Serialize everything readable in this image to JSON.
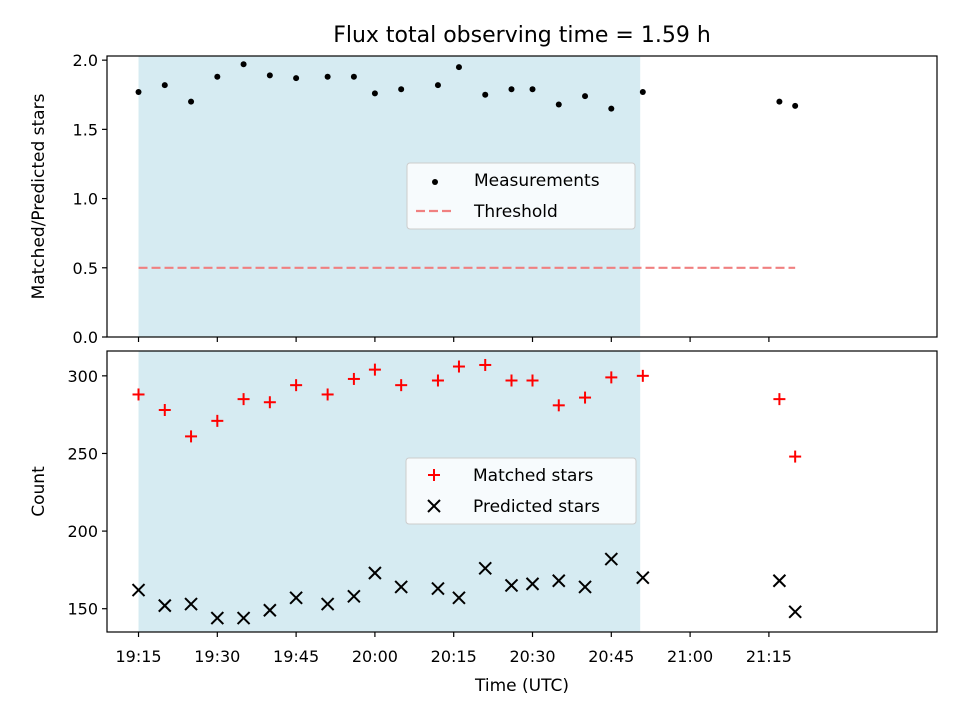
{
  "chart_data": {
    "title": "Flux total observing time = 1.59 h",
    "xlabel": "Time (UTC)",
    "x_tick_labels": [
      "19:15",
      "19:30",
      "19:45",
      "20:00",
      "20:15",
      "20:30",
      "20:45",
      "21:00",
      "21:15"
    ],
    "x_tick_minutes": [
      1155,
      1170,
      1185,
      1200,
      1215,
      1230,
      1245,
      1260,
      1275
    ],
    "xlim_minutes": [
      1149,
      1307
    ],
    "shaded_span_minutes": [
      1155,
      1250.5
    ],
    "shade_color": "#add8e6",
    "panels": [
      {
        "type": "scatter",
        "ylabel": "Matched/Predicted stars",
        "ylim": [
          0,
          2.03
        ],
        "y_ticks": [
          0.0,
          0.5,
          1.0,
          1.5,
          2.0
        ],
        "y_tick_labels": [
          "0.0",
          "0.5",
          "1.0",
          "1.5",
          "2.0"
        ],
        "threshold": {
          "value": 0.5,
          "x_range": [
            1155,
            1280
          ],
          "color": "#f08080"
        },
        "legend": {
          "position": "center",
          "entries": [
            "Measurements",
            "Threshold"
          ]
        },
        "series": [
          {
            "name": "Measurements",
            "marker": "dot",
            "color": "#000000",
            "x": [
              1155,
              1160,
              1165,
              1170,
              1175,
              1180,
              1185,
              1191,
              1196,
              1200,
              1205,
              1212,
              1216,
              1221,
              1226,
              1230,
              1235,
              1240,
              1245,
              1251,
              1277,
              1280
            ],
            "y": [
              1.77,
              1.82,
              1.7,
              1.88,
              1.97,
              1.89,
              1.87,
              1.88,
              1.88,
              1.76,
              1.79,
              1.82,
              1.95,
              1.75,
              1.79,
              1.79,
              1.68,
              1.74,
              1.65,
              1.77,
              1.7,
              1.67
            ]
          }
        ]
      },
      {
        "type": "scatter",
        "ylabel": "Count",
        "ylim": [
          135,
          316
        ],
        "y_ticks": [
          150,
          200,
          250,
          300
        ],
        "y_tick_labels": [
          "150",
          "200",
          "250",
          "300"
        ],
        "legend": {
          "position": "center",
          "entries": [
            "Matched stars",
            "Predicted stars"
          ]
        },
        "series": [
          {
            "name": "Matched stars",
            "marker": "plus",
            "color": "#ff0000",
            "x": [
              1155,
              1160,
              1165,
              1170,
              1175,
              1180,
              1185,
              1191,
              1196,
              1200,
              1205,
              1212,
              1216,
              1221,
              1226,
              1230,
              1235,
              1240,
              1245,
              1251,
              1277,
              1280
            ],
            "y": [
              288,
              278,
              261,
              271,
              285,
              283,
              294,
              288,
              298,
              304,
              294,
              297,
              306,
              307,
              297,
              297,
              281,
              286,
              299,
              300,
              285,
              248
            ]
          },
          {
            "name": "Predicted stars",
            "marker": "x",
            "color": "#000000",
            "x": [
              1155,
              1160,
              1165,
              1170,
              1175,
              1180,
              1185,
              1191,
              1196,
              1200,
              1205,
              1212,
              1216,
              1221,
              1226,
              1230,
              1235,
              1240,
              1245,
              1251,
              1277,
              1280
            ],
            "y": [
              162,
              152,
              153,
              144,
              144,
              149,
              157,
              153,
              158,
              173,
              164,
              163,
              157,
              176,
              165,
              166,
              168,
              164,
              182,
              170,
              168,
              148
            ]
          }
        ]
      }
    ]
  }
}
